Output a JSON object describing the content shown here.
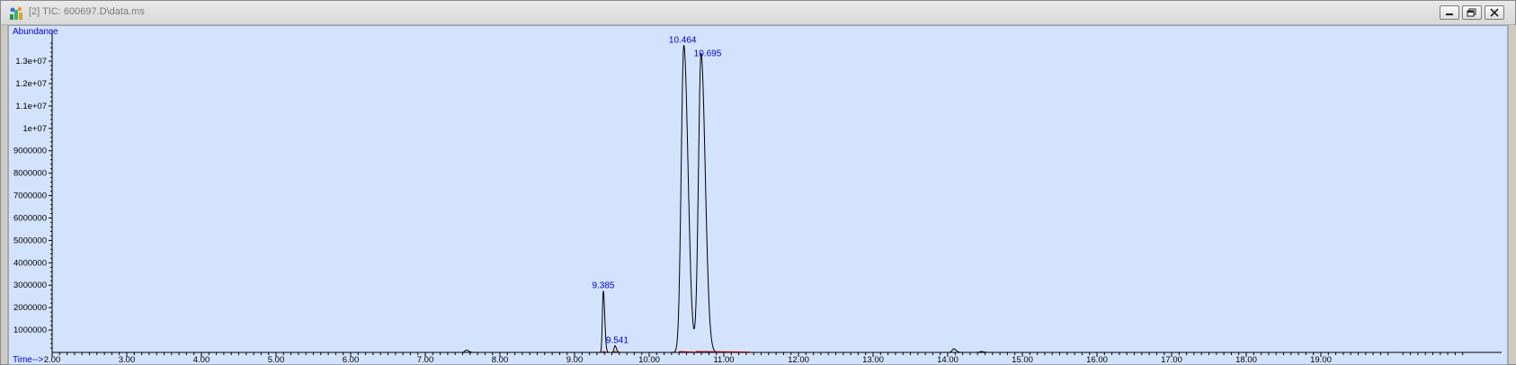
{
  "window": {
    "title": "[2] TIC: 600697.D\\data.ms",
    "app_icon": "chemstation-app-icon",
    "buttons": [
      "minimize-icon",
      "restore-icon",
      "close-icon"
    ]
  },
  "chart_data": {
    "type": "line",
    "ylabel": "Abundance",
    "xlabel": "Time-->",
    "xlim": [
      2.0,
      20.0
    ],
    "ylim": [
      0,
      14000000
    ],
    "x_ticks": [
      "2.00",
      "3.00",
      "4.00",
      "5.00",
      "6.00",
      "7.00",
      "8.00",
      "9.00",
      "10.00",
      "11.00",
      "12.00",
      "13.00",
      "14.00",
      "15.00",
      "16.00",
      "17.00",
      "18.00",
      "19.00"
    ],
    "x_tick_values": [
      2,
      3,
      4,
      5,
      6,
      7,
      8,
      9,
      10,
      11,
      12,
      13,
      14,
      15,
      16,
      17,
      18,
      19
    ],
    "y_ticks": [
      "1000000",
      "2000000",
      "3000000",
      "4000000",
      "5000000",
      "6000000",
      "7000000",
      "8000000",
      "9000000",
      "1e+07",
      "1.1e+07",
      "1.2e+07",
      "1.3e+07"
    ],
    "y_tick_values": [
      1000000,
      2000000,
      3000000,
      4000000,
      5000000,
      6000000,
      7000000,
      8000000,
      9000000,
      10000000,
      11000000,
      12000000,
      13000000
    ],
    "peaks": [
      {
        "label": "9.385",
        "rt": 9.385,
        "height": 2750000
      },
      {
        "label": "9.541",
        "rt": 9.541,
        "height": 300000
      },
      {
        "label": "10.464",
        "rt": 10.464,
        "height": 13700000
      },
      {
        "label": "10.695",
        "rt": 10.695,
        "height": 13350000
      }
    ],
    "minor_peaks": [
      {
        "rt": 7.55,
        "height": 100000
      },
      {
        "rt": 14.08,
        "height": 160000
      },
      {
        "rt": 14.45,
        "height": 40000
      }
    ],
    "colors": {
      "background": "#d3e3fd",
      "trace": "#000000",
      "baseline": "#c00000",
      "labels": "#0000cc",
      "axis": "#000000"
    }
  }
}
